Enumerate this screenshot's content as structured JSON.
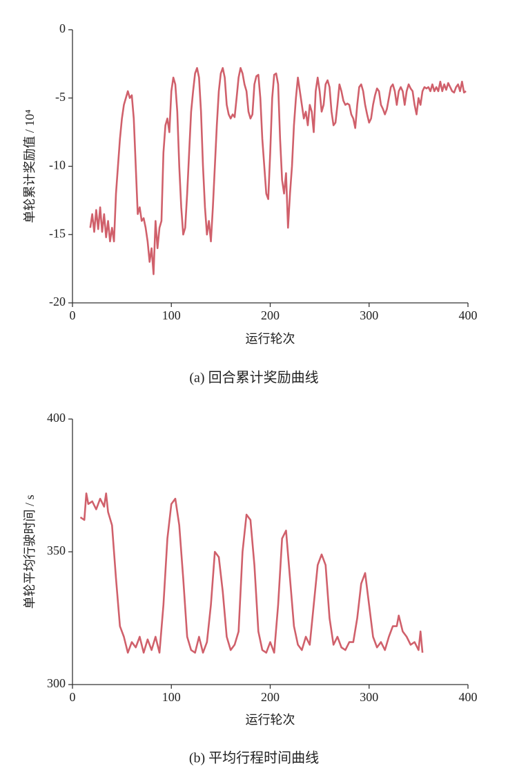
{
  "chart_data": [
    {
      "type": "line",
      "caption": "(a) 回合累计奖励曲线",
      "xlabel": "运行轮次",
      "ylabel": "单轮累计奖励值 / 10⁴",
      "xlim": [
        0,
        400
      ],
      "xticks": [
        0,
        100,
        200,
        300,
        400
      ],
      "ylim": [
        -20,
        0
      ],
      "yticks": [
        0,
        -5,
        -10,
        -15,
        -20
      ],
      "series": [
        {
          "name": null,
          "color": "#d0606b",
          "x": [
            18,
            20,
            22,
            24,
            26,
            28,
            30,
            32,
            34,
            36,
            38,
            40,
            42,
            44,
            46,
            48,
            50,
            52,
            54,
            56,
            58,
            60,
            62,
            64,
            66,
            68,
            70,
            72,
            74,
            76,
            78,
            80,
            82,
            84,
            86,
            88,
            90,
            92,
            94,
            96,
            98,
            100,
            102,
            104,
            106,
            108,
            110,
            112,
            114,
            116,
            118,
            120,
            122,
            124,
            126,
            128,
            130,
            132,
            134,
            136,
            138,
            140,
            142,
            144,
            146,
            148,
            150,
            152,
            154,
            156,
            158,
            160,
            162,
            164,
            166,
            168,
            170,
            172,
            174,
            176,
            178,
            180,
            182,
            184,
            186,
            188,
            190,
            192,
            194,
            196,
            198,
            200,
            202,
            204,
            206,
            208,
            210,
            212,
            214,
            216,
            218,
            220,
            222,
            224,
            226,
            228,
            230,
            232,
            234,
            236,
            238,
            240,
            242,
            244,
            246,
            248,
            250,
            252,
            254,
            256,
            258,
            260,
            262,
            264,
            266,
            268,
            270,
            272,
            274,
            276,
            278,
            280,
            282,
            284,
            286,
            288,
            290,
            292,
            294,
            296,
            298,
            300,
            302,
            304,
            306,
            308,
            310,
            312,
            314,
            316,
            318,
            320,
            322,
            324,
            326,
            328,
            330,
            332,
            334,
            336,
            338,
            340,
            342,
            344,
            346,
            348,
            350,
            352,
            354,
            356,
            358,
            360,
            362,
            364,
            366,
            368,
            370,
            372,
            374,
            376,
            378,
            380,
            382,
            384,
            386,
            388,
            390,
            392,
            394,
            396,
            398
          ],
          "values": [
            -14.5,
            -13.5,
            -14.8,
            -13.2,
            -14.6,
            -13,
            -14.8,
            -13.5,
            -15.2,
            -14,
            -15.5,
            -14.5,
            -15.5,
            -12,
            -10,
            -8,
            -6.5,
            -5.5,
            -5,
            -4.5,
            -5,
            -4.8,
            -6.5,
            -10,
            -13.5,
            -13,
            -14,
            -13.8,
            -14.5,
            -15.5,
            -17,
            -16,
            -17.9,
            -14,
            -16,
            -14.5,
            -14,
            -9,
            -7,
            -6.5,
            -7.5,
            -4.5,
            -3.5,
            -4,
            -6,
            -10,
            -13,
            -15,
            -14.5,
            -12,
            -9,
            -6,
            -4.5,
            -3.2,
            -2.8,
            -3.5,
            -6,
            -10,
            -13,
            -15,
            -14,
            -15.5,
            -13,
            -10,
            -7,
            -4.5,
            -3.2,
            -2.8,
            -3.5,
            -5.5,
            -6.2,
            -6.5,
            -6.2,
            -6.4,
            -5,
            -3.5,
            -2.8,
            -3.2,
            -4,
            -4.5,
            -6,
            -6.5,
            -6.2,
            -4,
            -3.4,
            -3.3,
            -5,
            -8,
            -10,
            -12,
            -12.4,
            -9,
            -5,
            -3.3,
            -3.2,
            -4,
            -8,
            -11,
            -12,
            -10.5,
            -14.5,
            -12,
            -10,
            -7,
            -5,
            -3.5,
            -4.5,
            -5.5,
            -6.5,
            -6,
            -7,
            -5.5,
            -6,
            -7.5,
            -4.5,
            -3.5,
            -4.5,
            -6,
            -5.5,
            -4,
            -3.7,
            -4.2,
            -6,
            -7,
            -6.8,
            -5.5,
            -4,
            -4.5,
            -5.2,
            -5.5,
            -5.4,
            -5.5,
            -6.2,
            -6.5,
            -7.2,
            -5.5,
            -4.2,
            -4,
            -4.5,
            -5.5,
            -6.2,
            -6.8,
            -6.5,
            -5.5,
            -4.8,
            -4.3,
            -4.5,
            -5.5,
            -5.8,
            -6.2,
            -5.8,
            -5,
            -4.2,
            -4,
            -4.5,
            -5.5,
            -4.5,
            -4.2,
            -4.5,
            -5.5,
            -4.5,
            -4,
            -4.3,
            -4.5,
            -5.5,
            -6.2,
            -5,
            -5.5,
            -4.5,
            -4.2,
            -4.3,
            -4.2,
            -4.5,
            -4,
            -4.5,
            -4.2,
            -4.5,
            -3.8,
            -4.5,
            -4,
            -4.4,
            -3.9,
            -4.2,
            -4.5,
            -4.6,
            -4.2,
            -4,
            -4.5,
            -3.8,
            -4.6,
            -4.5
          ]
        }
      ]
    },
    {
      "type": "line",
      "caption": "(b) 平均行程时间曲线",
      "xlabel": "运行轮次",
      "ylabel": "单轮平均行驶时间 / s",
      "xlim": [
        0,
        400
      ],
      "xticks": [
        0,
        100,
        200,
        300,
        400
      ],
      "ylim": [
        300,
        400
      ],
      "yticks": [
        300,
        350,
        400
      ],
      "series": [
        {
          "name": null,
          "color": "#d0606b",
          "x": [
            8,
            12,
            14,
            16,
            20,
            24,
            28,
            32,
            34,
            36,
            40,
            44,
            48,
            52,
            56,
            60,
            64,
            68,
            72,
            76,
            80,
            84,
            88,
            92,
            96,
            100,
            104,
            108,
            112,
            116,
            120,
            124,
            128,
            132,
            136,
            140,
            144,
            148,
            152,
            156,
            160,
            164,
            168,
            172,
            176,
            180,
            184,
            188,
            192,
            196,
            200,
            204,
            208,
            212,
            216,
            220,
            224,
            228,
            232,
            236,
            240,
            244,
            248,
            252,
            256,
            260,
            264,
            268,
            272,
            276,
            280,
            284,
            288,
            292,
            296,
            300,
            304,
            308,
            312,
            316,
            320,
            324,
            328,
            330,
            334,
            338,
            342,
            346,
            350,
            352,
            354
          ],
          "values": [
            363,
            362,
            372,
            368,
            369,
            366,
            370,
            367,
            372,
            365,
            360,
            340,
            322,
            318,
            312,
            316,
            314,
            318,
            312,
            317,
            313,
            318,
            312,
            330,
            355,
            368,
            370,
            360,
            340,
            318,
            313,
            312,
            318,
            312,
            316,
            330,
            350,
            348,
            335,
            318,
            313,
            315,
            320,
            350,
            364,
            362,
            345,
            320,
            313,
            312,
            316,
            312,
            330,
            355,
            358,
            340,
            322,
            315,
            313,
            318,
            315,
            330,
            345,
            349,
            345,
            325,
            315,
            318,
            314,
            313,
            316,
            316,
            325,
            338,
            342,
            330,
            318,
            314,
            316,
            313,
            318,
            322,
            322,
            326,
            320,
            318,
            315,
            316,
            313,
            320,
            312
          ]
        }
      ]
    }
  ]
}
